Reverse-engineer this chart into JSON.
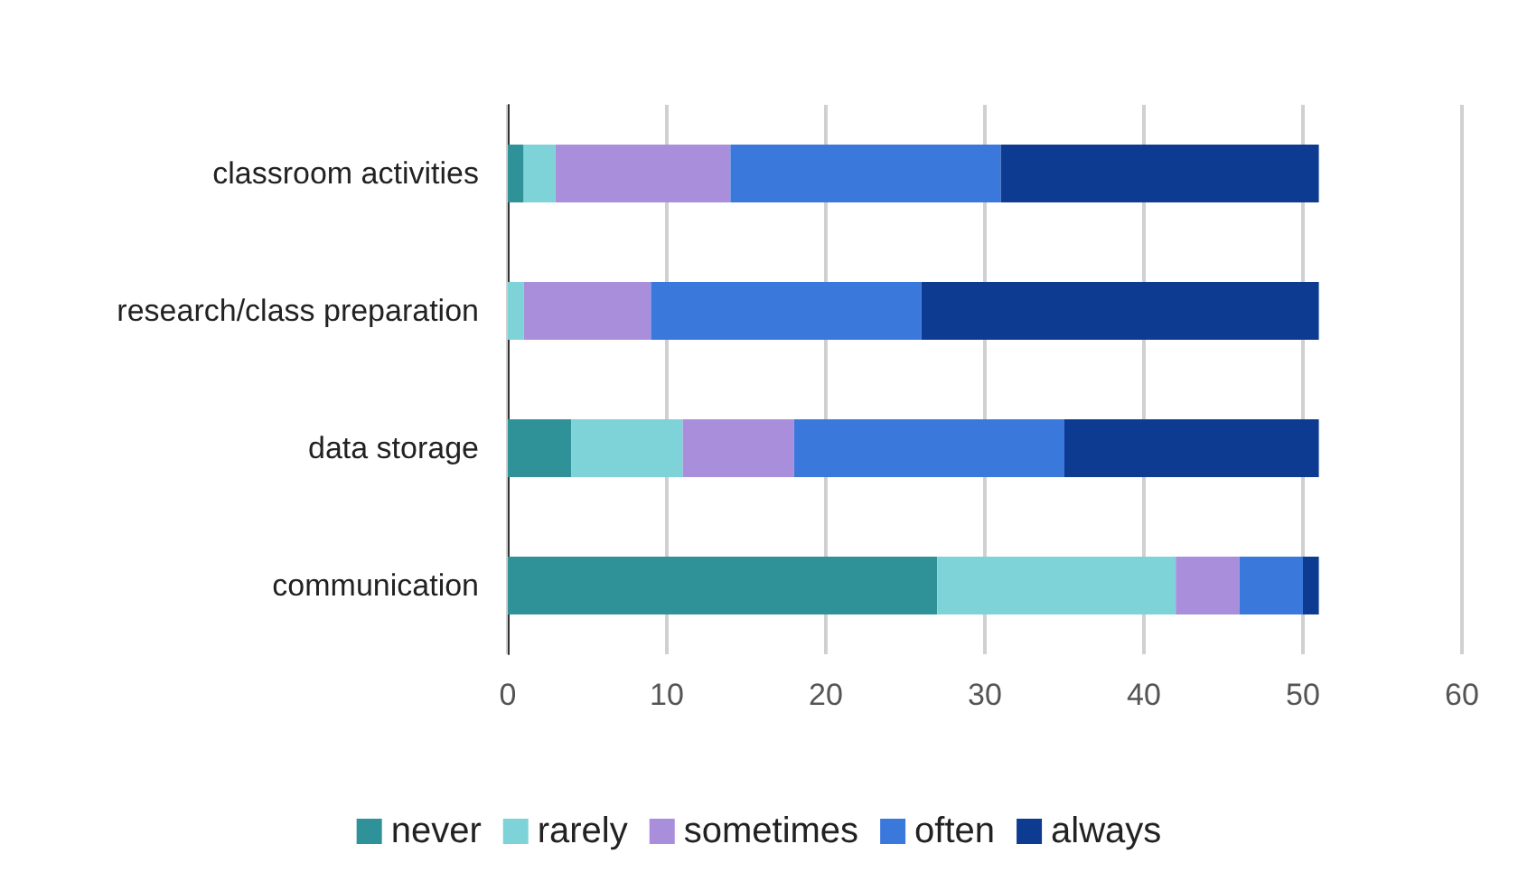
{
  "chart_data": {
    "type": "bar",
    "orientation": "horizontal",
    "stacked": true,
    "categories": [
      "classroom activities",
      "research/class preparation",
      "data storage",
      "communication"
    ],
    "series": [
      {
        "name": "never",
        "color": "#2e9298",
        "values": [
          1,
          0,
          4,
          27
        ]
      },
      {
        "name": "rarely",
        "color": "#7dd3d8",
        "values": [
          2,
          1,
          7,
          15
        ]
      },
      {
        "name": "sometimes",
        "color": "#a98fdb",
        "values": [
          11,
          8,
          7,
          4
        ]
      },
      {
        "name": "often",
        "color": "#3a78dc",
        "values": [
          17,
          17,
          17,
          4
        ]
      },
      {
        "name": "always",
        "color": "#0d3b91",
        "values": [
          20,
          25,
          16,
          1
        ]
      }
    ],
    "xlim": [
      0,
      60
    ],
    "xticks": [
      0,
      10,
      20,
      30,
      40,
      50,
      60
    ],
    "grid": "x",
    "legend": "bottom"
  }
}
